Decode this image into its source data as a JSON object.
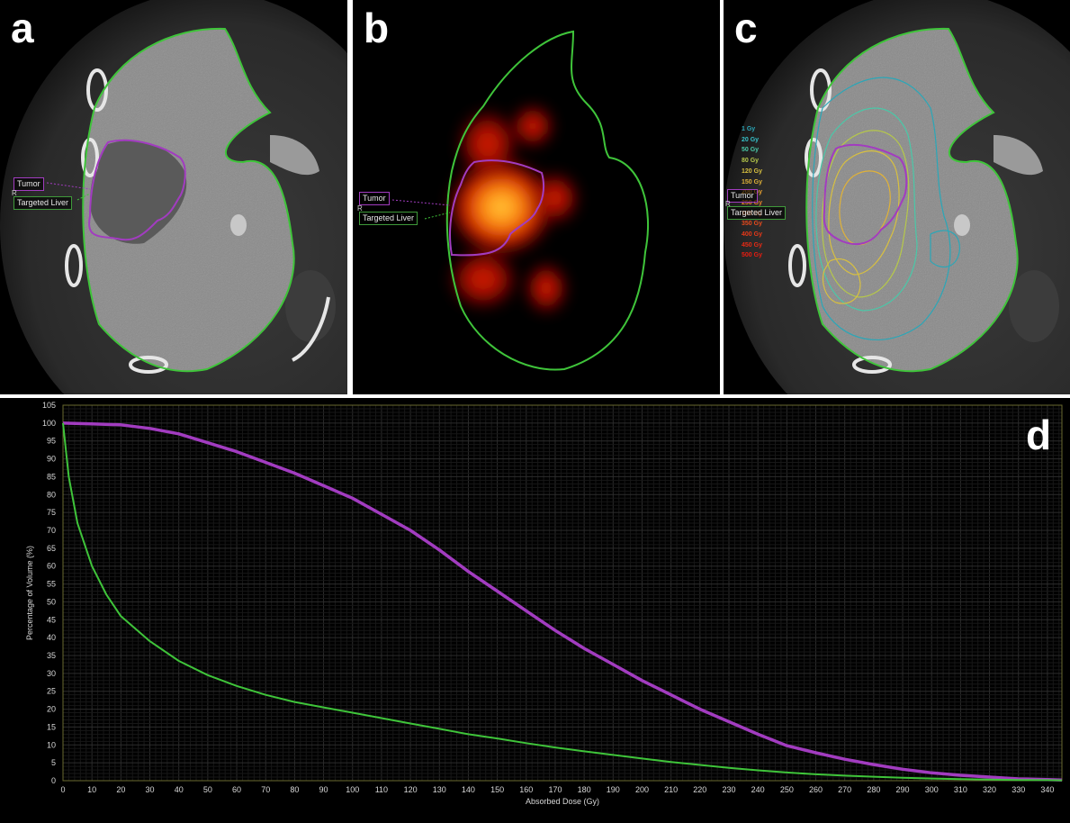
{
  "panels": {
    "a": {
      "letter": "a",
      "tumor_label": "Tumor",
      "liver_label": "Targeted Liver",
      "r_mark": "R"
    },
    "b": {
      "letter": "b",
      "tumor_label": "Tumor",
      "liver_label": "Targeted Liver",
      "r_mark": "R"
    },
    "c": {
      "letter": "c",
      "tumor_label": "Tumor",
      "liver_label": "Targeted Liver",
      "r_mark": "R",
      "isodose_legend": [
        {
          "label": "1 Gy",
          "color": "#2aa7b8"
        },
        {
          "label": "20 Gy",
          "color": "#36c0c8"
        },
        {
          "label": "50 Gy",
          "color": "#4ac8a8"
        },
        {
          "label": "80 Gy",
          "color": "#b6c84a"
        },
        {
          "label": "120 Gy",
          "color": "#d8c040"
        },
        {
          "label": "150 Gy",
          "color": "#e0b238"
        },
        {
          "label": "200 Gy",
          "color": "#e8a030"
        },
        {
          "label": "250 Gy",
          "color": "#e88028"
        },
        {
          "label": "300 Gy",
          "color": "#e86420"
        },
        {
          "label": "350 Gy",
          "color": "#e84a1c"
        },
        {
          "label": "400 Gy",
          "color": "#e83818"
        },
        {
          "label": "450 Gy",
          "color": "#e82a14"
        },
        {
          "label": "500 Gy",
          "color": "#e81c10"
        }
      ]
    },
    "d": {
      "letter": "d"
    }
  },
  "colors": {
    "tumor": "#a23cc0",
    "liver": "#3fc43a",
    "background": "#000000"
  },
  "chart_data": {
    "type": "line",
    "title": "",
    "xlabel": "Absorbed Dose (Gy)",
    "ylabel": "Percentage of Volume (%)",
    "xlim": [
      0,
      345
    ],
    "ylim": [
      0,
      105
    ],
    "x_ticks": [
      0,
      10,
      20,
      30,
      40,
      50,
      60,
      70,
      80,
      90,
      100,
      110,
      120,
      130,
      140,
      150,
      160,
      170,
      180,
      190,
      200,
      210,
      220,
      230,
      240,
      250,
      260,
      270,
      280,
      290,
      300,
      310,
      320,
      330,
      340
    ],
    "y_ticks": [
      0,
      5,
      10,
      15,
      20,
      25,
      30,
      35,
      40,
      45,
      50,
      55,
      60,
      65,
      70,
      75,
      80,
      85,
      90,
      95,
      100,
      105
    ],
    "grid": true,
    "series": [
      {
        "color": "#a23cc0",
        "x": [
          0,
          10,
          20,
          30,
          40,
          50,
          60,
          70,
          80,
          90,
          100,
          110,
          120,
          130,
          140,
          150,
          160,
          170,
          180,
          190,
          200,
          210,
          220,
          230,
          240,
          250,
          260,
          270,
          280,
          290,
          300,
          310,
          320,
          330,
          340,
          345
        ],
        "y": [
          100,
          99.8,
          99.5,
          98.5,
          97,
          94.5,
          92,
          89,
          86,
          82.5,
          79,
          74.5,
          70,
          64.5,
          58.5,
          53,
          47.5,
          42,
          37,
          32.5,
          28,
          24,
          20,
          16.5,
          13,
          9.8,
          7.8,
          6,
          4.5,
          3.2,
          2.2,
          1.5,
          1,
          0.5,
          0.3,
          0.2
        ]
      },
      {
        "color": "#3fc43a",
        "x": [
          0,
          2,
          5,
          10,
          15,
          20,
          30,
          40,
          50,
          60,
          70,
          80,
          90,
          100,
          110,
          120,
          130,
          140,
          150,
          160,
          170,
          180,
          190,
          200,
          210,
          220,
          230,
          240,
          250,
          260,
          270,
          280,
          290,
          300,
          310,
          320,
          330,
          340,
          345
        ],
        "y": [
          100,
          85,
          72,
          60,
          52,
          46,
          39,
          33.5,
          29.5,
          26.5,
          24,
          22,
          20.5,
          19,
          17.5,
          16,
          14.5,
          13,
          11.8,
          10.5,
          9.3,
          8.2,
          7.2,
          6.2,
          5.2,
          4.4,
          3.6,
          2.9,
          2.3,
          1.8,
          1.4,
          1.1,
          0.8,
          0.6,
          0.45,
          0.3,
          0.2,
          0.15,
          0.1
        ]
      }
    ]
  }
}
